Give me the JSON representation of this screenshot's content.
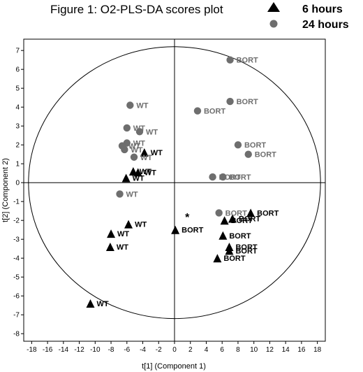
{
  "chart_data": {
    "type": "scatter",
    "title": "Figure 1: O2-PLS-DA scores plot",
    "xlabel": "t[1] (Component 1)",
    "ylabel": "t[2] (Component 2)",
    "xlim": [
      -19,
      19
    ],
    "ylim": [
      -8.4,
      7.6
    ],
    "xticks": [
      -18,
      -16,
      -14,
      -12,
      -10,
      -8,
      -6,
      -4,
      -2,
      0,
      2,
      4,
      6,
      8,
      10,
      12,
      14,
      16,
      18
    ],
    "yticks": [
      -8,
      -7,
      -6,
      -5,
      -4,
      -3,
      -2,
      -1,
      0,
      1,
      2,
      3,
      4,
      5,
      6,
      7
    ],
    "ellipse": {
      "rx": 18.4,
      "ry": 7.2
    },
    "legend_position": "top-right",
    "colors": {
      "6 hours": "#000000",
      "24 hours": "#6e6e6e"
    },
    "series": [
      {
        "name": "6 hours",
        "marker": "triangle",
        "points": [
          {
            "x": -3.8,
            "y": 1.6,
            "label": "WT"
          },
          {
            "x": -5.2,
            "y": 0.6,
            "label": "WT"
          },
          {
            "x": -4.6,
            "y": 0.55,
            "label": "WT"
          },
          {
            "x": -6.1,
            "y": 0.25,
            "label": "WT"
          },
          {
            "x": -5.8,
            "y": -2.2,
            "label": "WT"
          },
          {
            "x": -8.0,
            "y": -2.7,
            "label": "WT"
          },
          {
            "x": -8.1,
            "y": -3.4,
            "label": "WT"
          },
          {
            "x": -10.6,
            "y": -6.4,
            "label": "WT"
          },
          {
            "x": 0.1,
            "y": -2.5,
            "label": "BORT"
          },
          {
            "x": 6.1,
            "y": -2.8,
            "label": "BORT"
          },
          {
            "x": 6.3,
            "y": -2.0,
            "label": "BORT"
          },
          {
            "x": 7.3,
            "y": -1.9,
            "label": "BORT"
          },
          {
            "x": 9.6,
            "y": -1.6,
            "label": "BORT"
          },
          {
            "x": 6.9,
            "y": -3.4,
            "label": "BORT"
          },
          {
            "x": 6.9,
            "y": -3.6,
            "label": "BORT"
          },
          {
            "x": 5.4,
            "y": -4.0,
            "label": "BORT"
          }
        ]
      },
      {
        "name": "24 hours",
        "marker": "circle",
        "points": [
          {
            "x": -5.6,
            "y": 4.1,
            "label": "WT"
          },
          {
            "x": -6.0,
            "y": 2.9,
            "label": "WT"
          },
          {
            "x": -4.4,
            "y": 2.7,
            "label": "WT"
          },
          {
            "x": -6.0,
            "y": 2.1,
            "label": "WT"
          },
          {
            "x": -6.6,
            "y": 1.95,
            "label": "WT"
          },
          {
            "x": -6.3,
            "y": 1.75,
            "label": "WT"
          },
          {
            "x": -5.1,
            "y": 1.35,
            "label": "WT"
          },
          {
            "x": -6.9,
            "y": -0.6,
            "label": "WT"
          },
          {
            "x": 7.0,
            "y": 6.5,
            "label": "BORT"
          },
          {
            "x": 7.0,
            "y": 4.3,
            "label": "BORT"
          },
          {
            "x": 2.9,
            "y": 3.8,
            "label": "BORT"
          },
          {
            "x": 8.0,
            "y": 2.0,
            "label": "BORT"
          },
          {
            "x": 9.3,
            "y": 1.5,
            "label": "BORT"
          },
          {
            "x": 4.8,
            "y": 0.3,
            "label": "BORT"
          },
          {
            "x": 6.1,
            "y": 0.3,
            "label": "BORT"
          },
          {
            "x": 5.6,
            "y": -1.6,
            "label": "BORT"
          }
        ]
      }
    ],
    "annotations": [
      {
        "text": "*",
        "x": 1.6,
        "y": -1.8
      }
    ]
  }
}
